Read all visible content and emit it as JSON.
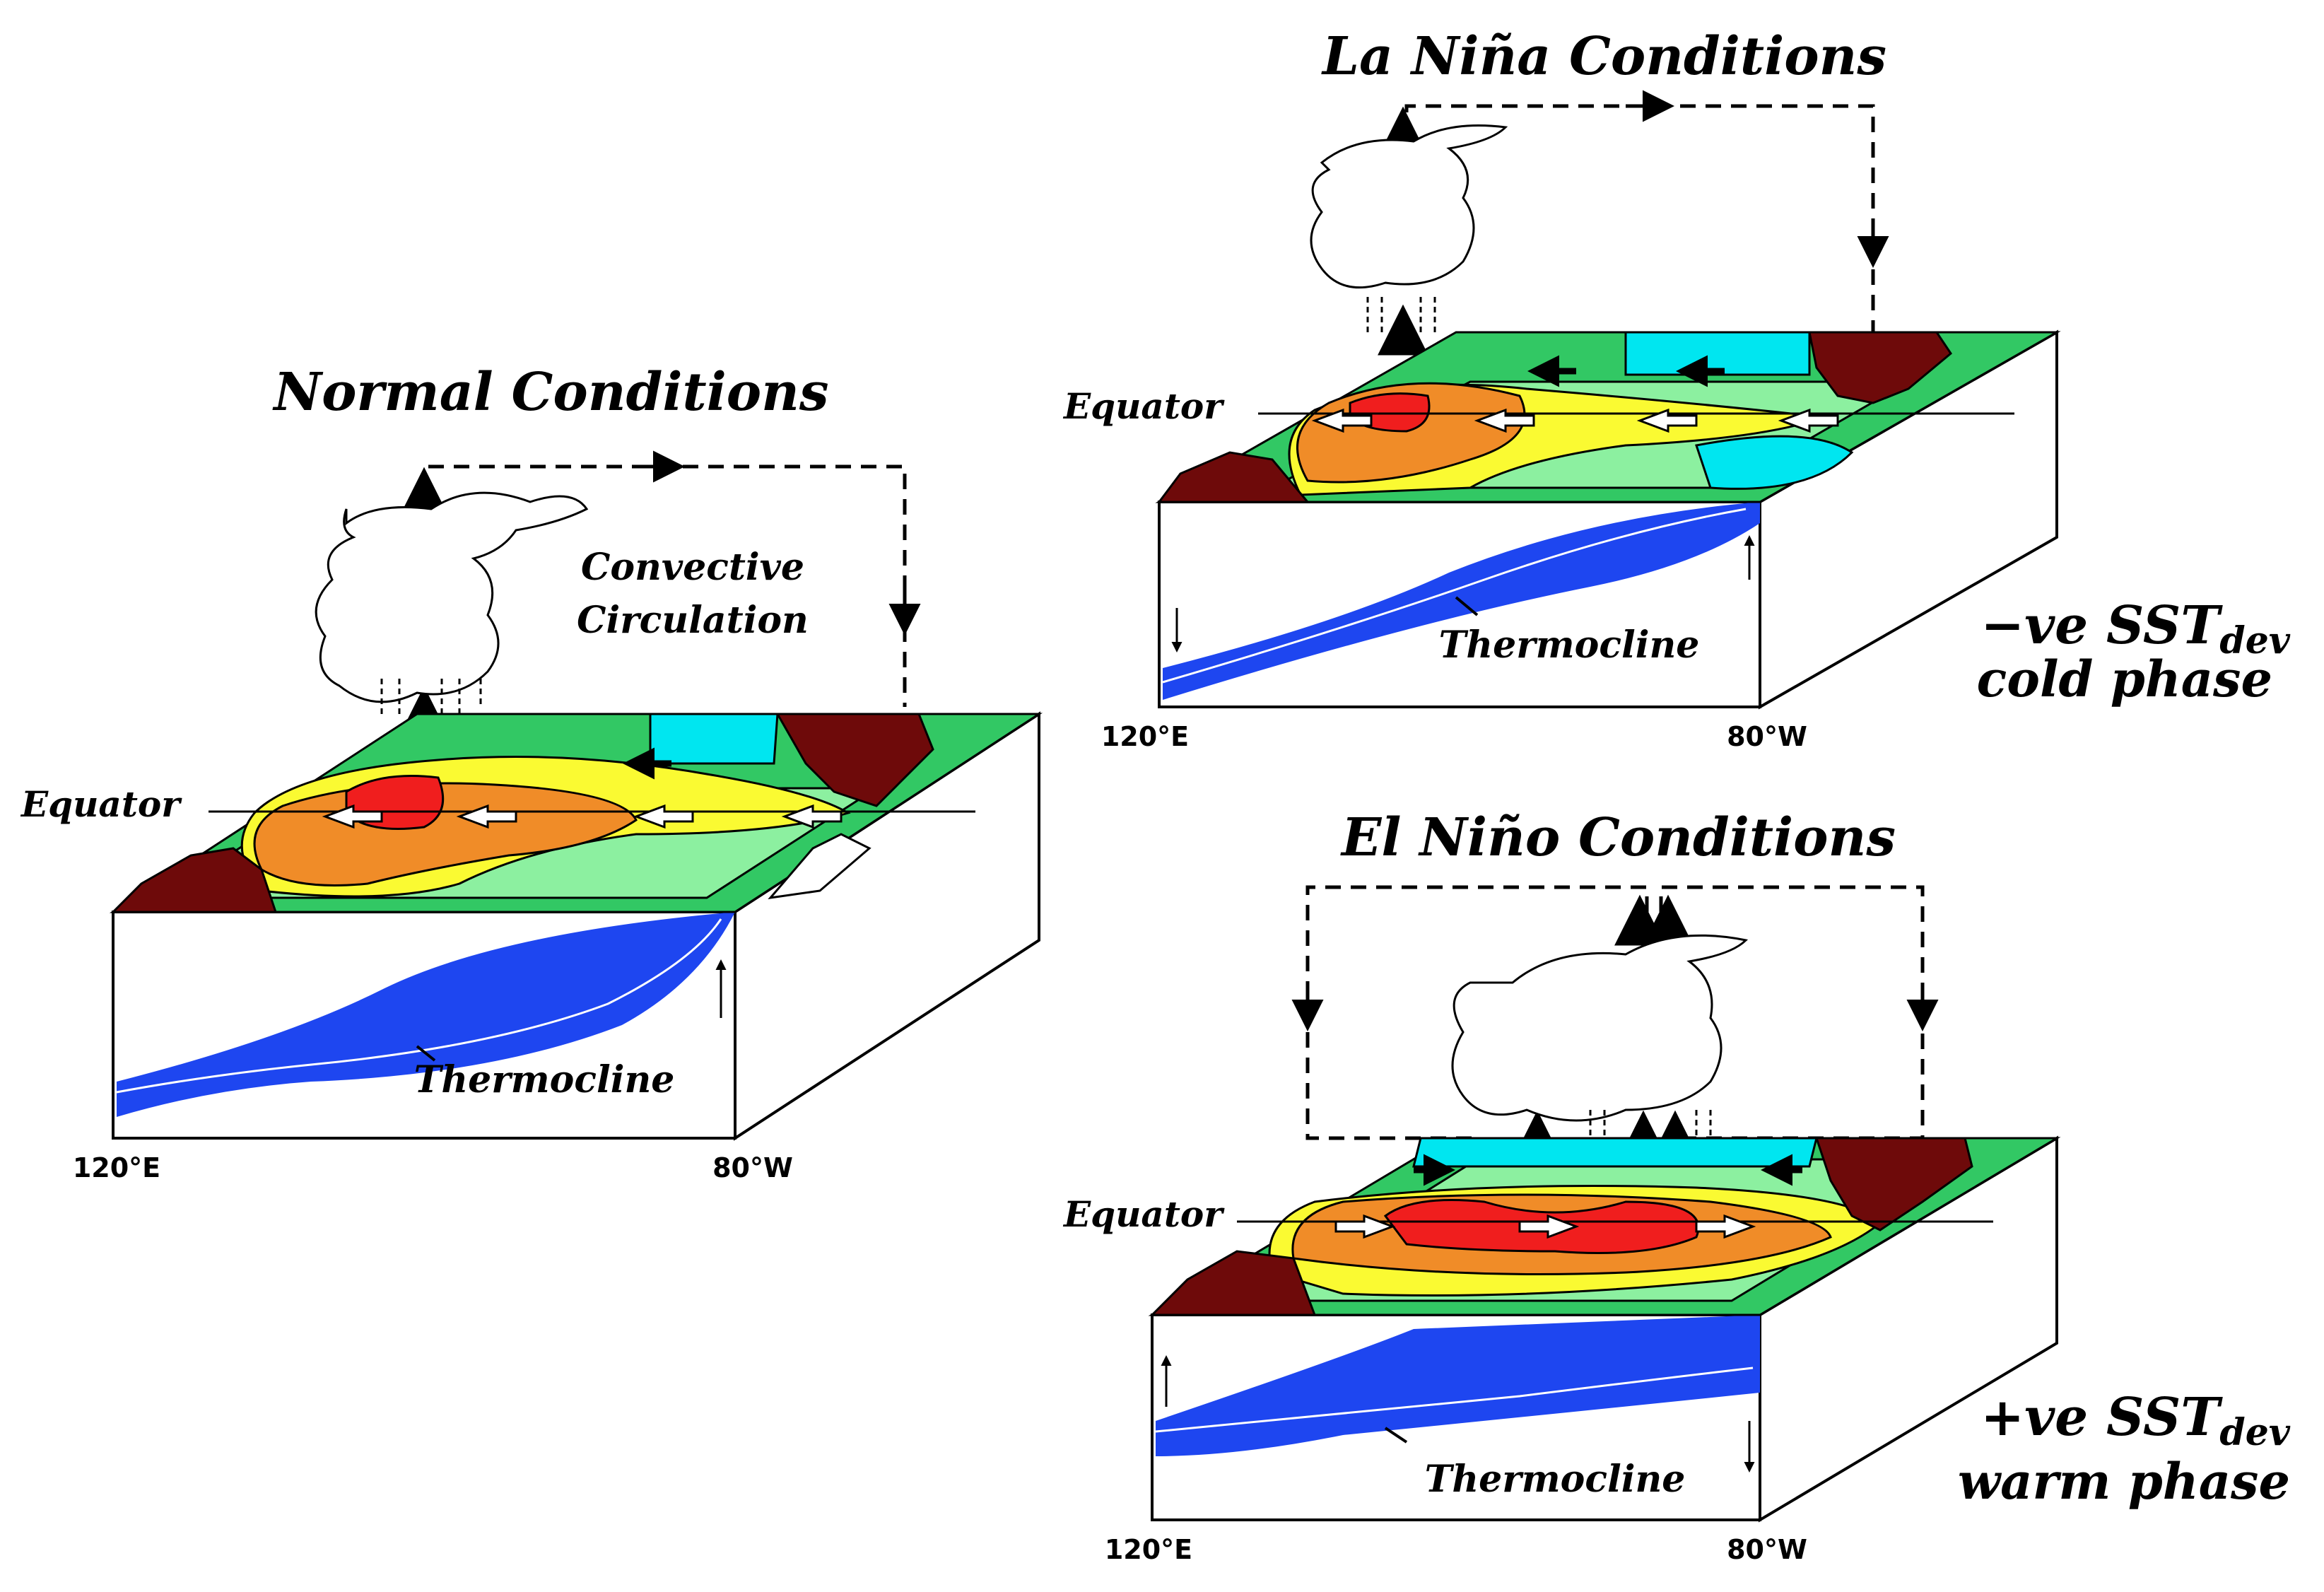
{
  "panels": {
    "normal": {
      "title": "Normal Conditions",
      "equator": "Equator",
      "thermocline": "Thermocline",
      "west": "120°E",
      "east": "80°W",
      "circulation_line1": "Convective",
      "circulation_line2": "Circulation"
    },
    "lanina": {
      "title": "La Niña Conditions",
      "equator": "Equator",
      "thermocline": "Thermocline",
      "west": "120°E",
      "east": "80°W",
      "sst_sign": "−ve SST",
      "sst_sub": "dev",
      "phase": "cold phase"
    },
    "elnino": {
      "title": "El Niño Conditions",
      "equator": "Equator",
      "thermocline": "Thermocline",
      "west": "120°E",
      "east": "80°W",
      "sst_sign": "+ve SST",
      "sst_sub": "dev",
      "phase": "warm phase"
    }
  },
  "colors": {
    "warmest": "#f01e1e",
    "warm": "#f08c28",
    "mild": "#fafa32",
    "cool": "#8cf0a0",
    "cooler": "#32c864",
    "cold": "#00e6f0",
    "land": "#6e0a0a",
    "deep_water": "#1e46f0"
  }
}
